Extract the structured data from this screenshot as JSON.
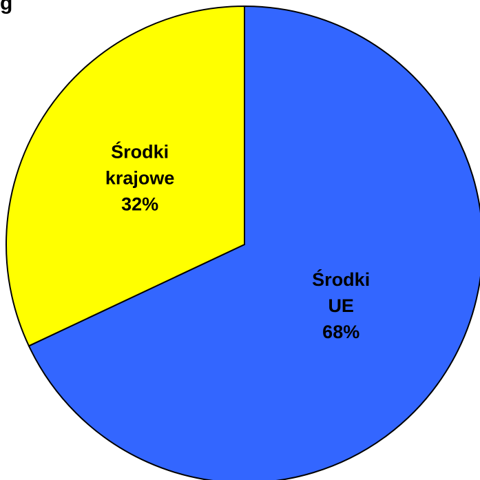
{
  "title_fragment": "g",
  "chart_data": {
    "type": "pie",
    "start_angle_deg": 0,
    "direction": "clockwise",
    "slices": [
      {
        "label_lines": [
          "Środki",
          "UE",
          "68%"
        ],
        "value": 68,
        "color": "#3366FF"
      },
      {
        "label_lines": [
          "Środki",
          "krajowe",
          "32%"
        ],
        "value": 32,
        "color": "#FFFF00"
      }
    ],
    "stroke_color": "#000000",
    "legend": "none"
  }
}
